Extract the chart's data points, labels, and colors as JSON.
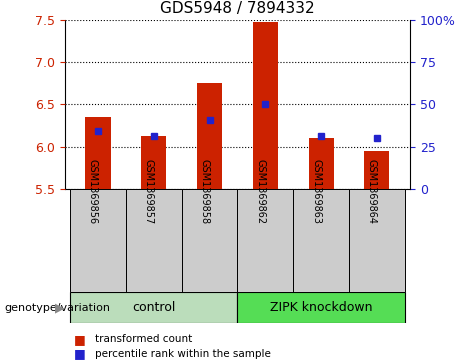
{
  "title": "GDS5948 / 7894332",
  "samples": [
    "GSM1369856",
    "GSM1369857",
    "GSM1369858",
    "GSM1369862",
    "GSM1369863",
    "GSM1369864"
  ],
  "red_values": [
    6.35,
    6.12,
    6.75,
    7.47,
    6.1,
    5.95
  ],
  "blue_values": [
    6.18,
    6.13,
    6.32,
    6.5,
    6.13,
    6.1
  ],
  "y_min": 5.5,
  "y_max": 7.5,
  "y_ticks": [
    5.5,
    6.0,
    6.5,
    7.0,
    7.5
  ],
  "right_y_ticks": [
    0,
    25,
    50,
    75,
    100
  ],
  "right_y_labels": [
    "0",
    "25",
    "50",
    "75",
    "100%"
  ],
  "groups": [
    {
      "label": "control",
      "indices": [
        0,
        1,
        2
      ],
      "color": "#bbddbb"
    },
    {
      "label": "ZIPK knockdown",
      "indices": [
        3,
        4,
        5
      ],
      "color": "#55dd55"
    }
  ],
  "bar_color": "#cc2200",
  "blue_color": "#2222cc",
  "bar_width": 0.45,
  "legend_label_red": "transformed count",
  "legend_label_blue": "percentile rank within the sample",
  "xlabel_left": "genotype/variation",
  "label_area_bg": "#cccccc",
  "title_fontsize": 11,
  "tick_fontsize": 9,
  "sample_fontsize": 7,
  "group_fontsize": 9
}
